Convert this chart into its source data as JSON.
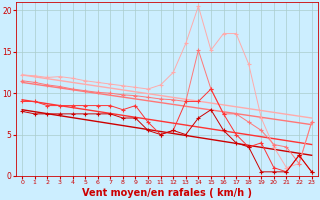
{
  "bg_color": "#cceeff",
  "grid_color": "#aacccc",
  "xlabel": "Vent moyen/en rafales ( km/h )",
  "xlabel_color": "#cc0000",
  "xlabel_fontsize": 7,
  "tick_color": "#cc0000",
  "ylim": [
    0,
    21
  ],
  "xlim": [
    -0.5,
    23.5
  ],
  "yticks": [
    0,
    5,
    10,
    15,
    20
  ],
  "xticks": [
    0,
    1,
    2,
    3,
    4,
    5,
    6,
    7,
    8,
    9,
    10,
    11,
    12,
    13,
    14,
    15,
    16,
    17,
    18,
    19,
    20,
    21,
    22,
    23
  ],
  "line1_color": "#ffaaaa",
  "line2_color": "#ff7777",
  "line3_color": "#ff3333",
  "line4_color": "#cc0000",
  "line1_data_y": [
    12.2,
    12.1,
    11.9,
    12.0,
    11.8,
    11.5,
    11.3,
    11.1,
    10.9,
    10.7,
    10.5,
    11.0,
    12.5,
    16.0,
    20.5,
    15.2,
    17.2,
    17.2,
    13.5,
    7.0,
    3.5,
    1.0,
    1.5,
    6.5
  ],
  "line2_data_y": [
    11.5,
    11.3,
    11.0,
    10.8,
    10.5,
    10.3,
    10.1,
    10.0,
    9.8,
    9.7,
    9.5,
    9.3,
    9.2,
    9.0,
    15.2,
    10.5,
    7.5,
    7.5,
    6.5,
    5.5,
    3.8,
    3.5,
    1.5,
    6.5
  ],
  "line3_data_y": [
    9.0,
    9.0,
    8.5,
    8.5,
    8.5,
    8.5,
    8.5,
    8.5,
    8.0,
    8.5,
    6.5,
    5.0,
    5.5,
    9.0,
    9.0,
    10.5,
    7.5,
    5.0,
    3.5,
    4.0,
    1.0,
    0.5,
    2.5,
    0.5
  ],
  "line4_data_y": [
    7.8,
    7.5,
    7.5,
    7.5,
    7.5,
    7.5,
    7.5,
    7.5,
    7.0,
    7.0,
    5.5,
    5.0,
    5.5,
    5.0,
    7.0,
    8.0,
    5.5,
    4.0,
    3.5,
    0.5,
    0.5,
    0.5,
    2.5,
    0.5
  ],
  "trend1_start": 12.2,
  "trend1_end": 7.0,
  "trend2_start": 11.3,
  "trend2_end": 6.2,
  "trend3_start": 9.2,
  "trend3_end": 3.8,
  "trend4_start": 8.0,
  "trend4_end": 2.5,
  "arrows_angle": [
    180,
    180,
    180,
    180,
    180,
    180,
    180,
    180,
    180,
    180,
    135,
    135,
    90,
    45,
    45,
    0,
    0,
    315,
    315,
    270,
    270,
    225,
    270,
    135
  ]
}
